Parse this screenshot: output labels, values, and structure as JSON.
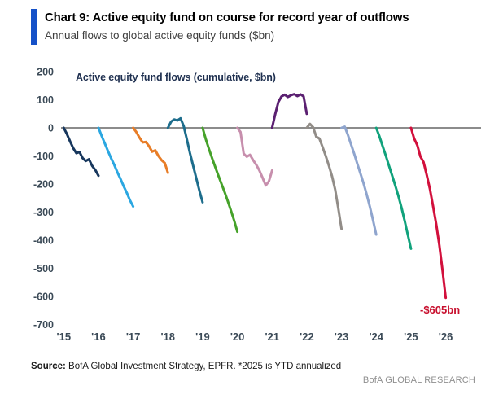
{
  "header": {
    "title": "Chart 9: Active equity fund on course for record year of outflows",
    "subtitle": "Annual flows to global active equity funds ($bn)",
    "accent_color": "#1551c8"
  },
  "chart_data": {
    "type": "line",
    "title": "Active equity fund flows (cumulative, $bn)",
    "title_color": "#1f3050",
    "description": "Each colored line shows one calendar year of cumulative monthly flows to global active equity funds in $bn, plotted from its year tick to the next year tick.",
    "x_tick_labels": [
      "'15",
      "'16",
      "'17",
      "'18",
      "'19",
      "'20",
      "'21",
      "'22",
      "'23",
      "'24",
      "'25",
      "'26"
    ],
    "y_ticks": [
      200,
      100,
      0,
      -100,
      -200,
      -300,
      -400,
      -500,
      -600,
      -700
    ],
    "y_tick_labels": [
      "200",
      "100",
      "0",
      "-100",
      "-200",
      "-300",
      "-400",
      "-500",
      "-600",
      "-700"
    ],
    "ylim": [
      -700,
      200
    ],
    "grid": false,
    "legend_position": "none",
    "zero_line_color": "#7c7c7c",
    "axis_label_color": "#3b4a57",
    "annotation": {
      "text": "-$605bn",
      "color": "#c8102e",
      "near_x": "'26",
      "value": -605
    },
    "series": [
      {
        "name": "2015",
        "color": "#17375d",
        "values": [
          0,
          -22,
          -48,
          -72,
          -90,
          -86,
          -108,
          -118,
          -112,
          -135,
          -150,
          -170
        ]
      },
      {
        "name": "2016",
        "color": "#2ba7e1",
        "values": [
          0,
          -28,
          -55,
          -82,
          -108,
          -132,
          -158,
          -182,
          -208,
          -232,
          -258,
          -280
        ]
      },
      {
        "name": "2017",
        "color": "#e87d27",
        "values": [
          0,
          -15,
          -35,
          -52,
          -50,
          -65,
          -85,
          -80,
          -100,
          -115,
          -125,
          -160
        ]
      },
      {
        "name": "2018",
        "color": "#1d6d8c",
        "values": [
          0,
          22,
          30,
          26,
          34,
          6,
          -40,
          -90,
          -135,
          -180,
          -225,
          -265
        ]
      },
      {
        "name": "2019",
        "color": "#46a22a",
        "values": [
          0,
          -40,
          -75,
          -108,
          -140,
          -170,
          -200,
          -230,
          -262,
          -295,
          -330,
          -370
        ]
      },
      {
        "name": "2020",
        "color": "#c78fad",
        "values": [
          0,
          -15,
          -92,
          -103,
          -96,
          -115,
          -132,
          -152,
          -178,
          -205,
          -190,
          -152
        ]
      },
      {
        "name": "2021",
        "color": "#5b2071",
        "values": [
          0,
          48,
          92,
          112,
          118,
          110,
          116,
          120,
          113,
          119,
          112,
          50
        ]
      },
      {
        "name": "2022",
        "color": "#928d88",
        "values": [
          0,
          14,
          2,
          -32,
          -38,
          -68,
          -100,
          -135,
          -172,
          -220,
          -288,
          -360
        ]
      },
      {
        "name": "2023",
        "color": "#8fa5ce",
        "values": [
          0,
          4,
          -24,
          -58,
          -92,
          -128,
          -162,
          -198,
          -238,
          -282,
          -330,
          -380
        ]
      },
      {
        "name": "2024",
        "color": "#11a27c",
        "values": [
          0,
          -30,
          -64,
          -98,
          -134,
          -168,
          -204,
          -242,
          -284,
          -330,
          -380,
          -430
        ]
      },
      {
        "name": "2025*",
        "color": "#d2103c",
        "values": [
          0,
          -38,
          -62,
          -102,
          -122,
          -168,
          -218,
          -278,
          -342,
          -418,
          -508,
          -605
        ]
      }
    ]
  },
  "footer": {
    "source_label": "Source:",
    "source_text": "BofA Global Investment Strategy, EPFR. *2025 is YTD annualized",
    "brand": "BofA GLOBAL RESEARCH"
  }
}
